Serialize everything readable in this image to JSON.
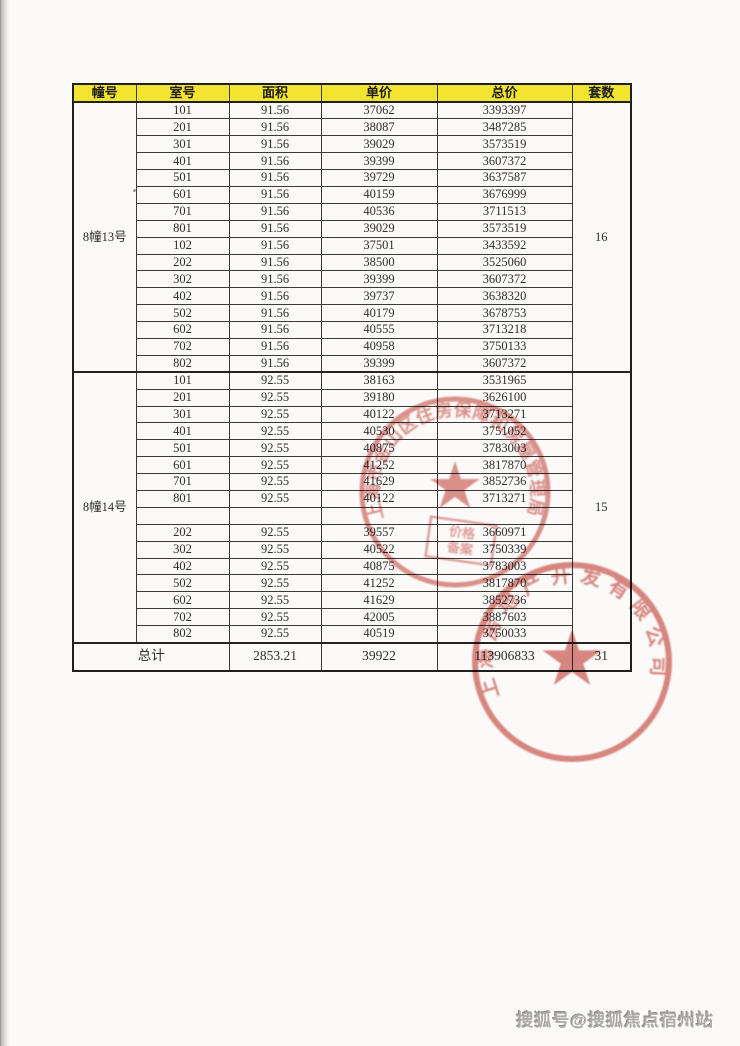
{
  "table": {
    "headers": [
      "幢号",
      "室号",
      "面积",
      "单价",
      "总价",
      "套数"
    ],
    "sections": [
      {
        "building": "8幢13号",
        "units": "16",
        "rows": [
          [
            "101",
            "91.56",
            "37062",
            "3393397"
          ],
          [
            "201",
            "91.56",
            "38087",
            "3487285"
          ],
          [
            "301",
            "91.56",
            "39029",
            "3573519"
          ],
          [
            "401",
            "91.56",
            "39399",
            "3607372"
          ],
          [
            "501",
            "91.56",
            "39729",
            "3637587"
          ],
          [
            "601",
            "91.56",
            "40159",
            "3676999"
          ],
          [
            "701",
            "91.56",
            "40536",
            "3711513"
          ],
          [
            "801",
            "91.56",
            "39029",
            "3573519"
          ],
          [
            "102",
            "91.56",
            "37501",
            "3433592"
          ],
          [
            "202",
            "91.56",
            "38500",
            "3525060"
          ],
          [
            "302",
            "91.56",
            "39399",
            "3607372"
          ],
          [
            "402",
            "91.56",
            "39737",
            "3638320"
          ],
          [
            "502",
            "91.56",
            "40179",
            "3678753"
          ],
          [
            "602",
            "91.56",
            "40555",
            "3713218"
          ],
          [
            "702",
            "91.56",
            "40958",
            "3750133"
          ],
          [
            "802",
            "91.56",
            "39399",
            "3607372"
          ]
        ]
      },
      {
        "building": "8幢14号",
        "units": "15",
        "rows": [
          [
            "101",
            "92.55",
            "38163",
            "3531965"
          ],
          [
            "201",
            "92.55",
            "39180",
            "3626100"
          ],
          [
            "301",
            "92.55",
            "40122",
            "3713271"
          ],
          [
            "401",
            "92.55",
            "40530",
            "3751052"
          ],
          [
            "501",
            "92.55",
            "40875",
            "3783003"
          ],
          [
            "601",
            "92.55",
            "41252",
            "3817870"
          ],
          [
            "701",
            "92.55",
            "41629",
            "3852736"
          ],
          [
            "801",
            "92.55",
            "40122",
            "3713271"
          ],
          [
            "",
            "",
            "",
            ""
          ],
          [
            "202",
            "92.55",
            "39557",
            "3660971"
          ],
          [
            "302",
            "92.55",
            "40522",
            "3750339"
          ],
          [
            "402",
            "92.55",
            "40875",
            "3783003"
          ],
          [
            "502",
            "92.55",
            "41252",
            "3817870"
          ],
          [
            "602",
            "92.55",
            "41629",
            "3852736"
          ],
          [
            "702",
            "92.55",
            "42005",
            "3887603"
          ],
          [
            "802",
            "92.55",
            "40519",
            "3750033"
          ]
        ]
      }
    ],
    "total": {
      "label": "总计",
      "area": "2853.21",
      "unit_price": "39922",
      "total_price": "113906833",
      "units": "31"
    }
  },
  "stamps": [
    {
      "arc_text": "上海市金山区住房保障和房屋管理局",
      "badge_line1": "价格",
      "badge_line2": "备案",
      "color": "#c9514a"
    },
    {
      "arc_text": "上海房地产开发有限公司",
      "color": "#c9514a"
    }
  ],
  "watermark": "搜狐号@搜狐焦点宿州站"
}
